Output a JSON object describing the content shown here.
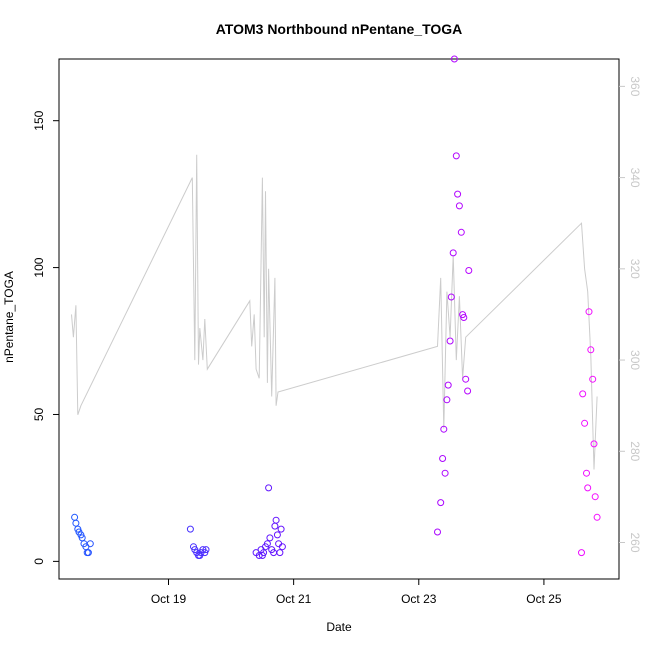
{
  "chart_data": {
    "type": "scatter",
    "title": "ATOM3 Northbound nPentane_TOGA",
    "xlabel": "Date",
    "ylabel": "nPentane_TOGA",
    "x_ticks": [
      {
        "label": "Oct 19",
        "day": 19
      },
      {
        "label": "Oct 21",
        "day": 21
      },
      {
        "label": "Oct 23",
        "day": 23
      },
      {
        "label": "Oct 25",
        "day": 25
      }
    ],
    "xlim_days": [
      17.25,
      26.2
    ],
    "ylim": [
      -6,
      171
    ],
    "y_ticks": [
      0,
      50,
      100,
      150
    ],
    "y2_ticks": [
      260,
      280,
      300,
      320,
      340,
      360
    ],
    "y2lim": [
      252,
      366
    ],
    "grid": false,
    "legend": "none",
    "colors": {
      "start": "#1a5cff",
      "mid": "#7a00ff",
      "end": "#ff10ff",
      "line": "#cccccc",
      "axis": "#000000",
      "right_axis_text": "#c8c8c8"
    },
    "scatter_groups": [
      {
        "x": [
          17.5,
          17.52,
          17.55,
          17.57,
          17.6,
          17.62,
          17.65,
          17.68,
          17.7,
          17.72,
          17.75
        ],
        "y": [
          15,
          13,
          11,
          10,
          9,
          8,
          6,
          5,
          3,
          3,
          6
        ]
      },
      {
        "x": [
          19.35,
          19.4,
          19.42,
          19.45,
          19.48,
          19.5,
          19.52,
          19.55,
          19.58,
          19.6
        ],
        "y": [
          11,
          5,
          4,
          3,
          2,
          2,
          3,
          4,
          3,
          4
        ]
      },
      {
        "x": [
          20.4,
          20.45,
          20.48,
          20.5,
          20.52,
          20.55,
          20.58,
          20.6,
          20.62,
          20.65,
          20.68,
          20.7,
          20.72,
          20.74,
          20.76,
          20.78,
          20.8,
          20.82
        ],
        "y": [
          3,
          2,
          4,
          2,
          3,
          5,
          6,
          25,
          8,
          4,
          3,
          12,
          14,
          9,
          6,
          3,
          11,
          5
        ]
      },
      {
        "x": [
          23.3,
          23.35,
          23.38,
          23.4,
          23.42,
          23.45,
          23.47,
          23.5,
          23.52,
          23.55,
          23.57,
          23.6,
          23.62,
          23.65,
          23.68,
          23.7,
          23.72,
          23.75,
          23.78,
          23.8
        ],
        "y": [
          10,
          20,
          35,
          45,
          30,
          55,
          60,
          75,
          90,
          105,
          171,
          138,
          125,
          121,
          112,
          84,
          83,
          62,
          58,
          99
        ]
      },
      {
        "x": [
          25.6,
          25.62,
          25.65,
          25.68,
          25.7,
          25.72,
          25.75,
          25.78,
          25.8,
          25.82,
          25.85
        ],
        "y": [
          3,
          57,
          47,
          30,
          25,
          85,
          72,
          62,
          40,
          22,
          15
        ]
      }
    ],
    "right_axis_series": {
      "name": "",
      "x": [
        17.45,
        17.48,
        17.52,
        17.55,
        17.6,
        19.38,
        19.42,
        19.45,
        19.48,
        19.5,
        19.55,
        19.58,
        19.62,
        20.3,
        20.33,
        20.37,
        20.4,
        20.45,
        20.5,
        20.53,
        20.55,
        20.58,
        20.6,
        20.65,
        20.7,
        20.72,
        20.75,
        23.3,
        23.35,
        23.4,
        23.45,
        23.5,
        23.55,
        23.6,
        23.65,
        23.7,
        23.75,
        25.6,
        25.65,
        25.7,
        25.75,
        25.8,
        25.85
      ],
      "y": [
        310,
        305,
        312,
        288,
        290,
        340,
        300,
        345,
        299,
        307,
        300,
        309,
        298,
        313,
        303,
        310,
        298,
        296,
        340,
        305,
        337,
        295,
        320,
        292,
        318,
        290,
        293,
        303,
        318,
        285,
        315,
        305,
        323,
        300,
        314,
        296,
        305,
        330,
        320,
        315,
        301,
        276,
        292
      ]
    }
  }
}
